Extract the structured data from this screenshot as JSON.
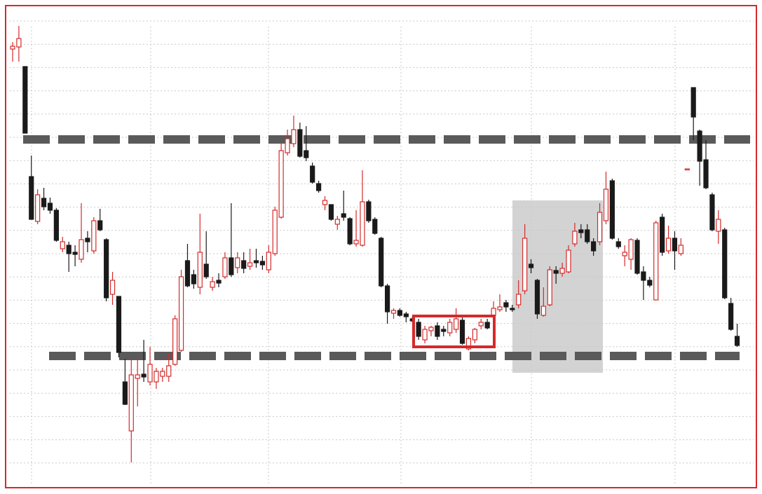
{
  "chart_data": {
    "type": "candlestick",
    "ylim": [
      0,
      680
    ],
    "up_color": "#d42a2a",
    "down_color": "#1a1a1a",
    "level_color": "#5a5a5a",
    "levels": [
      491,
      182
    ],
    "ohlc": [
      [
        620,
        630,
        602,
        624
      ],
      [
        623,
        653,
        602,
        635
      ],
      [
        595,
        595,
        500,
        500
      ],
      [
        438,
        468,
        377,
        377
      ],
      [
        374,
        420,
        370,
        412
      ],
      [
        407,
        422,
        390,
        395
      ],
      [
        400,
        408,
        385,
        390
      ],
      [
        390,
        393,
        345,
        347
      ],
      [
        335,
        352,
        330,
        345
      ],
      [
        340,
        345,
        302,
        328
      ],
      [
        330,
        340,
        310,
        327
      ],
      [
        320,
        400,
        315,
        348
      ],
      [
        350,
        360,
        330,
        345
      ],
      [
        332,
        380,
        328,
        375
      ],
      [
        375,
        392,
        360,
        362
      ],
      [
        348,
        350,
        260,
        265
      ],
      [
        270,
        302,
        255,
        290
      ],
      [
        267,
        267,
        180,
        187
      ],
      [
        145,
        178,
        112,
        113
      ],
      [
        75,
        180,
        30,
        155
      ],
      [
        150,
        180,
        110,
        155
      ],
      [
        156,
        205,
        145,
        152
      ],
      [
        145,
        195,
        140,
        170
      ],
      [
        145,
        165,
        135,
        160
      ],
      [
        153,
        165,
        145,
        160
      ],
      [
        153,
        185,
        145,
        168
      ],
      [
        170,
        240,
        168,
        235
      ],
      [
        190,
        305,
        188,
        295
      ],
      [
        318,
        342,
        280,
        282
      ],
      [
        298,
        305,
        278,
        285
      ],
      [
        280,
        385,
        270,
        330
      ],
      [
        313,
        360,
        292,
        295
      ],
      [
        280,
        295,
        275,
        288
      ],
      [
        290,
        300,
        280,
        286
      ],
      [
        295,
        330,
        292,
        322
      ],
      [
        322,
        400,
        295,
        298
      ],
      [
        308,
        330,
        300,
        322
      ],
      [
        318,
        330,
        300,
        307
      ],
      [
        310,
        335,
        305,
        315
      ],
      [
        318,
        335,
        308,
        315
      ],
      [
        317,
        325,
        305,
        312
      ],
      [
        305,
        340,
        300,
        330
      ],
      [
        328,
        395,
        325,
        390
      ],
      [
        380,
        485,
        378,
        475
      ],
      [
        472,
        505,
        468,
        492
      ],
      [
        485,
        525,
        480,
        505
      ],
      [
        505,
        515,
        465,
        467
      ],
      [
        475,
        510,
        460,
        465
      ],
      [
        453,
        458,
        428,
        430
      ],
      [
        428,
        432,
        415,
        418
      ],
      [
        398,
        410,
        390,
        404
      ],
      [
        398,
        398,
        375,
        377
      ],
      [
        370,
        382,
        362,
        377
      ],
      [
        385,
        418,
        375,
        380
      ],
      [
        378,
        380,
        340,
        342
      ],
      [
        342,
        390,
        338,
        347
      ],
      [
        340,
        447,
        338,
        402
      ],
      [
        402,
        405,
        372,
        375
      ],
      [
        377,
        380,
        355,
        357
      ],
      [
        350,
        352,
        280,
        282
      ],
      [
        282,
        285,
        228,
        245
      ],
      [
        243,
        250,
        235,
        247
      ],
      [
        247,
        250,
        238,
        240
      ],
      [
        242,
        245,
        230,
        238
      ],
      [
        235,
        238,
        230,
        232
      ],
      [
        230,
        235,
        205,
        210
      ],
      [
        205,
        225,
        200,
        220
      ],
      [
        218,
        225,
        210,
        223
      ],
      [
        225,
        230,
        205,
        210
      ],
      [
        220,
        225,
        210,
        217
      ],
      [
        215,
        235,
        210,
        230
      ],
      [
        220,
        250,
        215,
        235
      ],
      [
        233,
        240,
        198,
        200
      ],
      [
        192,
        210,
        190,
        207
      ],
      [
        205,
        222,
        200,
        220
      ],
      [
        225,
        235,
        220,
        230
      ],
      [
        230,
        235,
        220,
        222
      ],
      [
        240,
        260,
        235,
        250
      ],
      [
        248,
        270,
        245,
        252
      ],
      [
        258,
        262,
        245,
        252
      ],
      [
        250,
        255,
        245,
        248
      ],
      [
        255,
        290,
        250,
        270
      ],
      [
        275,
        370,
        270,
        350
      ],
      [
        313,
        320,
        300,
        308
      ],
      [
        290,
        292,
        235,
        242
      ],
      [
        240,
        280,
        238,
        253
      ],
      [
        255,
        310,
        253,
        305
      ],
      [
        304,
        310,
        285,
        300
      ],
      [
        300,
        315,
        295,
        307
      ],
      [
        302,
        340,
        300,
        333
      ],
      [
        342,
        372,
        338,
        360
      ],
      [
        362,
        370,
        350,
        358
      ],
      [
        362,
        370,
        342,
        345
      ],
      [
        345,
        350,
        325,
        332
      ],
      [
        345,
        400,
        340,
        387
      ],
      [
        375,
        445,
        370,
        420
      ],
      [
        432,
        435,
        348,
        350
      ],
      [
        345,
        350,
        335,
        338
      ],
      [
        325,
        340,
        310,
        330
      ],
      [
        320,
        350,
        305,
        348
      ],
      [
        347,
        350,
        298,
        300
      ],
      [
        302,
        310,
        262,
        290
      ],
      [
        290,
        295,
        280,
        283
      ],
      [
        262,
        375,
        262,
        372
      ],
      [
        380,
        385,
        325,
        330
      ],
      [
        332,
        368,
        328,
        350
      ],
      [
        350,
        360,
        305,
        332
      ],
      [
        328,
        350,
        325,
        340
      ],
      [
        449,
        449,
        449,
        449
      ],
      [
        565,
        565,
        490,
        523
      ],
      [
        503,
        505,
        425,
        460
      ],
      [
        462,
        490,
        420,
        422
      ],
      [
        412,
        415,
        360,
        362
      ],
      [
        360,
        390,
        342,
        377
      ],
      [
        362,
        365,
        263,
        265
      ],
      [
        257,
        265,
        218,
        220
      ],
      [
        210,
        228,
        195,
        197
      ]
    ]
  }
}
